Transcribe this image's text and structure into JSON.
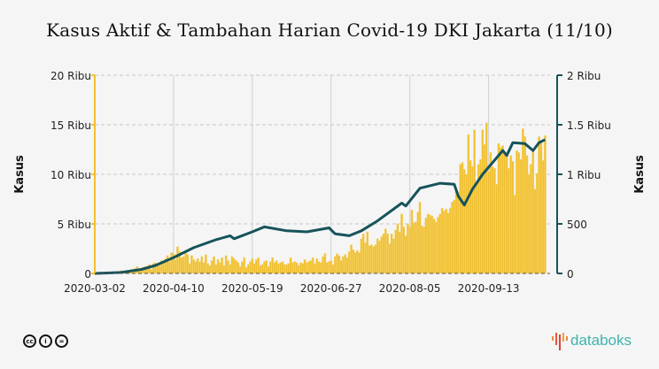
{
  "chart_data": {
    "type": "bar+line",
    "title": "Kasus Aktif & Tambahan Harian Covid-19 DKI Jakarta (11/10)",
    "start_date": "2020-03-02",
    "end_date": "2020-10-11",
    "x_ticks": [
      "2020-03-02",
      "2020-04-10",
      "2020-05-19",
      "2020-06-27",
      "2020-08-05",
      "2020-09-13"
    ],
    "left_axis": {
      "label": "Kasus",
      "range": [
        0,
        20000
      ],
      "ticks": [
        "0",
        "5 Ribu",
        "10 Ribu",
        "15 Ribu",
        "20 Ribu"
      ],
      "tick_values": [
        0,
        5000,
        10000,
        15000,
        20000
      ],
      "color": "#f0c030"
    },
    "right_axis": {
      "label": "Kasus",
      "range": [
        0,
        2000
      ],
      "ticks": [
        "0",
        "500",
        "1 Ribu",
        "1.5 Ribu",
        "2 Ribu"
      ],
      "tick_values": [
        0,
        500,
        1000,
        1500,
        2000
      ],
      "color": "#16535a"
    },
    "grid": true,
    "bars": {
      "axis": "right",
      "color": "#f0c030",
      "values": [
        0,
        0,
        0,
        0,
        0,
        0,
        0,
        0,
        0,
        10,
        5,
        10,
        15,
        30,
        5,
        20,
        30,
        15,
        40,
        30,
        50,
        70,
        30,
        40,
        60,
        70,
        50,
        90,
        40,
        100,
        110,
        90,
        80,
        130,
        110,
        150,
        180,
        120,
        210,
        200,
        140,
        270,
        220,
        160,
        170,
        230,
        190,
        100,
        180,
        140,
        120,
        150,
        120,
        170,
        110,
        190,
        100,
        80,
        130,
        170,
        90,
        140,
        110,
        160,
        80,
        180,
        130,
        90,
        170,
        150,
        130,
        110,
        70,
        120,
        160,
        60,
        90,
        120,
        150,
        100,
        140,
        160,
        80,
        90,
        120,
        130,
        70,
        120,
        160,
        110,
        130,
        100,
        110,
        120,
        90,
        90,
        100,
        160,
        110,
        120,
        110,
        80,
        110,
        100,
        140,
        110,
        120,
        130,
        160,
        100,
        150,
        120,
        110,
        170,
        200,
        110,
        120,
        130,
        90,
        170,
        200,
        180,
        130,
        170,
        190,
        160,
        220,
        290,
        240,
        210,
        230,
        210,
        350,
        400,
        310,
        420,
        280,
        290,
        270,
        290,
        350,
        330,
        370,
        400,
        450,
        400,
        300,
        400,
        350,
        440,
        500,
        420,
        600,
        470,
        380,
        500,
        470,
        640,
        510,
        520,
        620,
        720,
        480,
        470,
        560,
        600,
        590,
        580,
        550,
        520,
        570,
        600,
        660,
        630,
        650,
        610,
        660,
        720,
        740,
        830,
        820,
        1100,
        1120,
        1050,
        1000,
        1400,
        1140,
        1080,
        1450,
        900,
        1100,
        1150,
        1450,
        1300,
        1520,
        1030,
        1220,
        1080,
        1060,
        900,
        1310,
        1270,
        1290,
        1200,
        1180,
        1060,
        1190,
        1130,
        790,
        1240,
        1220,
        1150,
        1460,
        1380,
        1190,
        1000,
        1100,
        1250,
        850,
        1010,
        1380,
        1330,
        1140,
        1390
      ]
    },
    "line": {
      "axis": "left",
      "color": "#16535a",
      "points": [
        [
          "2020-03-02",
          0
        ],
        [
          "2020-03-15",
          100
        ],
        [
          "2020-03-25",
          400
        ],
        [
          "2020-04-01",
          800
        ],
        [
          "2020-04-10",
          1600
        ],
        [
          "2020-04-20",
          2600
        ],
        [
          "2020-05-01",
          3400
        ],
        [
          "2020-05-08",
          3800
        ],
        [
          "2020-05-10",
          3500
        ],
        [
          "2020-05-19",
          4200
        ],
        [
          "2020-05-25",
          4700
        ],
        [
          "2020-06-05",
          4300
        ],
        [
          "2020-06-15",
          4200
        ],
        [
          "2020-06-26",
          4600
        ],
        [
          "2020-06-29",
          4000
        ],
        [
          "2020-07-06",
          3800
        ],
        [
          "2020-07-12",
          4300
        ],
        [
          "2020-07-20",
          5300
        ],
        [
          "2020-08-01",
          7100
        ],
        [
          "2020-08-03",
          6800
        ],
        [
          "2020-08-10",
          8600
        ],
        [
          "2020-08-20",
          9100
        ],
        [
          "2020-08-27",
          9000
        ],
        [
          "2020-08-29",
          7800
        ],
        [
          "2020-09-01",
          6900
        ],
        [
          "2020-09-05",
          8500
        ],
        [
          "2020-09-10",
          10000
        ],
        [
          "2020-09-15",
          11200
        ],
        [
          "2020-09-20",
          12400
        ],
        [
          "2020-09-22",
          11900
        ],
        [
          "2020-09-25",
          13200
        ],
        [
          "2020-10-01",
          13100
        ],
        [
          "2020-10-05",
          12400
        ],
        [
          "2020-10-08",
          13200
        ],
        [
          "2020-10-11",
          13500
        ]
      ]
    }
  },
  "footer": {
    "license_icons": [
      "cc-icon",
      "by-icon",
      "nd-icon"
    ],
    "brand": "databoks"
  }
}
